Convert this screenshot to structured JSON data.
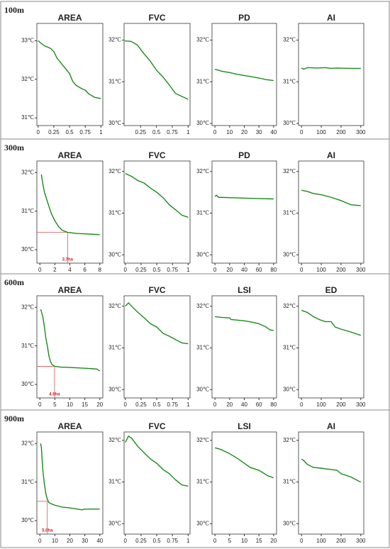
{
  "row_labels": [
    "100m",
    "300m",
    "600m",
    "900m"
  ],
  "chart_data": [
    {
      "type": "line",
      "title": "AREA",
      "color": "#1a8a1a",
      "x": [
        0,
        0.05,
        0.1,
        0.2,
        0.25,
        0.3,
        0.4,
        0.5,
        0.55,
        0.6,
        0.7,
        0.75,
        0.8,
        0.9,
        1
      ],
      "values": [
        33.0,
        32.93,
        32.87,
        32.8,
        32.72,
        32.55,
        32.35,
        32.15,
        31.95,
        31.85,
        31.75,
        31.72,
        31.63,
        31.53,
        31.5
      ],
      "xlim": [
        -0.02,
        1.03
      ],
      "xticks": [
        0,
        0.25,
        0.5,
        0.75,
        1
      ],
      "ylim": [
        30.8,
        33.45
      ],
      "yticks": [
        {
          "value": 31,
          "label": "31℃"
        },
        {
          "value": 32,
          "label": "32℃"
        },
        {
          "value": 33,
          "label": "33℃"
        }
      ]
    },
    {
      "type": "line",
      "title": "FVC",
      "color": "#1a8a1a",
      "x": [
        0,
        0.1,
        0.2,
        0.3,
        0.4,
        0.5,
        0.6,
        0.7,
        0.8,
        0.9,
        1
      ],
      "values": [
        31.98,
        31.97,
        31.88,
        31.68,
        31.5,
        31.28,
        31.12,
        30.93,
        30.72,
        30.65,
        30.58
      ],
      "xlim": [
        -0.01,
        1.03
      ],
      "xticks": [
        0.25,
        0.5,
        0.75,
        1
      ],
      "ylim": [
        29.95,
        32.4
      ],
      "yticks": [
        {
          "value": 30,
          "label": "30℃"
        },
        {
          "value": 31,
          "label": "31℃"
        },
        {
          "value": 32,
          "label": "32℃"
        }
      ]
    },
    {
      "type": "line",
      "title": "PD",
      "color": "#1a8a1a",
      "x": [
        0,
        2,
        5,
        10,
        15,
        20,
        25,
        30,
        35,
        40
      ],
      "values": [
        31.3,
        31.28,
        31.25,
        31.22,
        31.18,
        31.15,
        31.12,
        31.09,
        31.05,
        31.03
      ],
      "xlim": [
        -2,
        42
      ],
      "xticks": [
        0,
        10,
        20,
        30,
        40
      ],
      "ylim": [
        29.95,
        32.4
      ],
      "yticks": [
        {
          "value": 30,
          "label": "30℃"
        },
        {
          "value": 31,
          "label": "31℃"
        },
        {
          "value": 32,
          "label": "32℃"
        }
      ]
    },
    {
      "type": "line",
      "title": "AI",
      "color": "#1a8a1a",
      "x": [
        0,
        10,
        30,
        80,
        120,
        150,
        180,
        250,
        300
      ],
      "values": [
        31.33,
        31.3,
        31.34,
        31.33,
        31.34,
        31.32,
        31.33,
        31.32,
        31.32
      ],
      "xlim": [
        -15,
        315
      ],
      "xticks": [
        0,
        100,
        200,
        300
      ],
      "ylim": [
        29.95,
        32.4
      ],
      "yticks": [
        {
          "value": 30,
          "label": "30℃"
        },
        {
          "value": 31,
          "label": "31℃"
        },
        {
          "value": 32,
          "label": "32℃"
        }
      ]
    },
    {
      "type": "line",
      "title": "AREA",
      "color": "#1a8a1a",
      "x": [
        0.2,
        0.4,
        0.6,
        1,
        1.5,
        2,
        2.5,
        3,
        3.7,
        5,
        6,
        7,
        8
      ],
      "values": [
        31.95,
        31.7,
        31.5,
        31.25,
        30.95,
        30.75,
        30.6,
        30.5,
        30.45,
        30.42,
        30.41,
        30.4,
        30.39
      ],
      "xlim": [
        -0.4,
        8.4
      ],
      "xticks": [
        0,
        2,
        4,
        6,
        8
      ],
      "ylim": [
        29.65,
        32.3
      ],
      "yticks": [
        {
          "value": 30,
          "label": "30℃"
        },
        {
          "value": 31,
          "label": "31℃"
        },
        {
          "value": 32,
          "label": "32℃"
        }
      ],
      "annotation": {
        "text": "3.7ha",
        "x": 3.7,
        "y": 30.45
      }
    },
    {
      "type": "line",
      "title": "FVC",
      "color": "#1a8a1a",
      "x": [
        0,
        0.1,
        0.2,
        0.3,
        0.4,
        0.5,
        0.6,
        0.7,
        0.8,
        0.9,
        1
      ],
      "values": [
        31.95,
        31.88,
        31.78,
        31.72,
        31.6,
        31.5,
        31.37,
        31.2,
        31.08,
        30.95,
        30.9
      ],
      "xlim": [
        -0.02,
        1.03
      ],
      "xticks": [
        0,
        0.25,
        0.5,
        0.75,
        1
      ],
      "ylim": [
        29.8,
        32.25
      ],
      "yticks": [
        {
          "value": 30,
          "label": "30℃"
        },
        {
          "value": 31,
          "label": "31℃"
        },
        {
          "value": 32,
          "label": "32℃"
        }
      ]
    },
    {
      "type": "line",
      "title": "PD",
      "color": "#1a8a1a",
      "x": [
        0,
        2,
        5,
        20,
        40,
        60,
        80
      ],
      "values": [
        31.4,
        31.43,
        31.38,
        31.37,
        31.36,
        31.35,
        31.34
      ],
      "xlim": [
        -4,
        84
      ],
      "xticks": [
        0,
        20,
        40,
        60,
        80
      ],
      "ylim": [
        29.8,
        32.25
      ],
      "yticks": [
        {
          "value": 30,
          "label": "30℃"
        },
        {
          "value": 31,
          "label": "31℃"
        },
        {
          "value": 32,
          "label": "32℃"
        }
      ]
    },
    {
      "type": "line",
      "title": "AI",
      "color": "#1a8a1a",
      "x": [
        0,
        30,
        60,
        100,
        150,
        200,
        250,
        300
      ],
      "values": [
        31.55,
        31.52,
        31.47,
        31.44,
        31.38,
        31.3,
        31.2,
        31.18
      ],
      "xlim": [
        -15,
        315
      ],
      "xticks": [
        0,
        100,
        200,
        300
      ],
      "ylim": [
        29.8,
        32.25
      ],
      "yticks": [
        {
          "value": 30,
          "label": "30℃"
        },
        {
          "value": 31,
          "label": "31℃"
        },
        {
          "value": 32,
          "label": "32℃"
        }
      ]
    },
    {
      "type": "line",
      "title": "AREA",
      "color": "#1a8a1a",
      "x": [
        0.3,
        1,
        1.5,
        2,
        2.5,
        3,
        3.5,
        4,
        4.9,
        7,
        10,
        15,
        19,
        20
      ],
      "values": [
        31.95,
        31.75,
        31.5,
        31.2,
        31.0,
        30.75,
        30.6,
        30.52,
        30.47,
        30.45,
        30.44,
        30.42,
        30.4,
        30.35
      ],
      "xlim": [
        -1,
        21
      ],
      "xticks": [
        0,
        5,
        10,
        15,
        20
      ],
      "ylim": [
        29.65,
        32.3
      ],
      "yticks": [
        {
          "value": 30,
          "label": "30℃"
        },
        {
          "value": 31,
          "label": "31℃"
        },
        {
          "value": 32,
          "label": "32℃"
        }
      ],
      "annotation": {
        "text": "4.9ha",
        "x": 4.9,
        "y": 30.47
      }
    },
    {
      "type": "line",
      "title": "FVC",
      "color": "#1a8a1a",
      "x": [
        0,
        0.05,
        0.1,
        0.2,
        0.3,
        0.4,
        0.5,
        0.6,
        0.7,
        0.8,
        0.9,
        1
      ],
      "values": [
        32.0,
        32.08,
        32.0,
        31.85,
        31.72,
        31.58,
        31.5,
        31.35,
        31.28,
        31.2,
        31.12,
        31.1
      ],
      "xlim": [
        -0.02,
        1.03
      ],
      "xticks": [
        0,
        0.25,
        0.5,
        0.75,
        1
      ],
      "ylim": [
        29.8,
        32.25
      ],
      "yticks": [
        {
          "value": 30,
          "label": "30℃"
        },
        {
          "value": 31,
          "label": "31℃"
        },
        {
          "value": 32,
          "label": "32℃"
        }
      ]
    },
    {
      "type": "line",
      "title": "LSI",
      "color": "#1a8a1a",
      "x": [
        0,
        10,
        20,
        22,
        40,
        50,
        60,
        70,
        75,
        80
      ],
      "values": [
        31.75,
        31.73,
        31.72,
        31.68,
        31.65,
        31.62,
        31.58,
        31.5,
        31.43,
        31.42
      ],
      "xlim": [
        -4,
        84
      ],
      "xticks": [
        0,
        20,
        40,
        60,
        80
      ],
      "ylim": [
        29.8,
        32.25
      ],
      "yticks": [
        {
          "value": 30,
          "label": "30℃"
        },
        {
          "value": 31,
          "label": "31℃"
        },
        {
          "value": 32,
          "label": "32℃"
        }
      ]
    },
    {
      "type": "line",
      "title": "ED",
      "color": "#1a8a1a",
      "x": [
        0,
        30,
        60,
        90,
        120,
        150,
        170,
        200,
        250,
        300
      ],
      "values": [
        31.9,
        31.85,
        31.75,
        31.68,
        31.63,
        31.63,
        31.5,
        31.45,
        31.38,
        31.3
      ],
      "xlim": [
        -15,
        315
      ],
      "xticks": [
        0,
        100,
        200,
        300
      ],
      "ylim": [
        29.8,
        32.25
      ],
      "yticks": [
        {
          "value": 30,
          "label": "30℃"
        },
        {
          "value": 31,
          "label": "31℃"
        },
        {
          "value": 32,
          "label": "32℃"
        }
      ]
    },
    {
      "type": "line",
      "title": "AREA",
      "color": "#1a8a1a",
      "x": [
        0.5,
        1,
        2,
        3,
        4,
        5,
        6,
        8,
        10,
        15,
        20,
        25,
        28,
        30,
        40
      ],
      "values": [
        32.0,
        31.9,
        31.3,
        30.95,
        30.7,
        30.55,
        30.47,
        30.43,
        30.4,
        30.35,
        30.33,
        30.3,
        30.28,
        30.3,
        30.3
      ],
      "xlim": [
        -2,
        42
      ],
      "xticks": [
        0,
        10,
        20,
        30,
        40
      ],
      "ylim": [
        29.65,
        32.3
      ],
      "yticks": [
        {
          "value": 30,
          "label": "30℃"
        },
        {
          "value": 31,
          "label": "31℃"
        },
        {
          "value": 32,
          "label": "32℃"
        }
      ],
      "annotation": {
        "text": "5.0ha",
        "x": 5.0,
        "y": 30.5
      }
    },
    {
      "type": "line",
      "title": "FVC",
      "color": "#1a8a1a",
      "x": [
        0,
        0.05,
        0.1,
        0.2,
        0.3,
        0.4,
        0.5,
        0.6,
        0.7,
        0.8,
        0.9,
        1
      ],
      "values": [
        31.95,
        32.1,
        32.05,
        31.85,
        31.7,
        31.55,
        31.45,
        31.3,
        31.2,
        31.05,
        30.93,
        30.9
      ],
      "xlim": [
        -0.02,
        1.03
      ],
      "xticks": [
        0,
        0.25,
        0.5,
        0.75,
        1
      ],
      "ylim": [
        29.75,
        32.2
      ],
      "yticks": [
        {
          "value": 30,
          "label": "30℃"
        },
        {
          "value": 31,
          "label": "31℃"
        },
        {
          "value": 32,
          "label": "32℃"
        }
      ]
    },
    {
      "type": "line",
      "title": "LSI",
      "color": "#1a8a1a",
      "x": [
        0,
        2,
        5,
        8,
        10,
        12,
        15,
        18,
        20
      ],
      "values": [
        31.82,
        31.78,
        31.68,
        31.55,
        31.45,
        31.35,
        31.28,
        31.15,
        31.1
      ],
      "xlim": [
        -1,
        21
      ],
      "xticks": [
        0,
        5,
        10,
        15,
        20
      ],
      "ylim": [
        29.75,
        32.2
      ],
      "yticks": [
        {
          "value": 30,
          "label": "30℃"
        },
        {
          "value": 31,
          "label": "31℃"
        },
        {
          "value": 32,
          "label": "32℃"
        }
      ]
    },
    {
      "type": "line",
      "title": "AI",
      "color": "#1a8a1a",
      "x": [
        0,
        10,
        30,
        60,
        100,
        150,
        180,
        200,
        250,
        290,
        300
      ],
      "values": [
        31.55,
        31.52,
        31.42,
        31.35,
        31.33,
        31.3,
        31.28,
        31.2,
        31.12,
        31.02,
        31.0
      ],
      "xlim": [
        -15,
        315
      ],
      "xticks": [
        0,
        100,
        200,
        300
      ],
      "ylim": [
        29.75,
        32.2
      ],
      "yticks": [
        {
          "value": 30,
          "label": "30℃"
        },
        {
          "value": 31,
          "label": "31℃"
        },
        {
          "value": 32,
          "label": "32℃"
        }
      ]
    }
  ]
}
